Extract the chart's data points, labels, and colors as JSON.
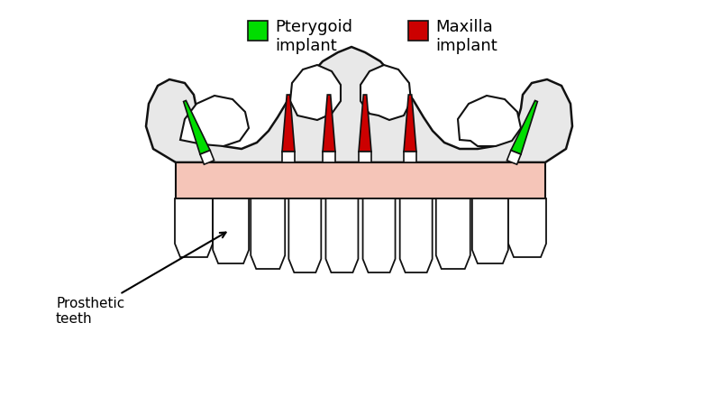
{
  "background_color": "#ffffff",
  "bone_fill": "#e8e8e8",
  "bone_outline": "#111111",
  "gum_fill": "#f5c5b8",
  "gum_outline": "#111111",
  "tooth_fill": "#ffffff",
  "tooth_outline": "#111111",
  "green_implant_color": "#00dd00",
  "red_implant_color": "#cc0000",
  "white_collar": "#ffffff",
  "legend_green_label_line1": "Pterygoid",
  "legend_green_label_line2": "implant",
  "legend_red_label_line1": "Maxilla",
  "legend_red_label_line2": "implant",
  "annotation_text": "Prosthetic\nteeth",
  "font_size_legend": 13,
  "font_size_annotation": 11,
  "fig_width": 8.0,
  "fig_height": 4.5,
  "dpi": 100
}
